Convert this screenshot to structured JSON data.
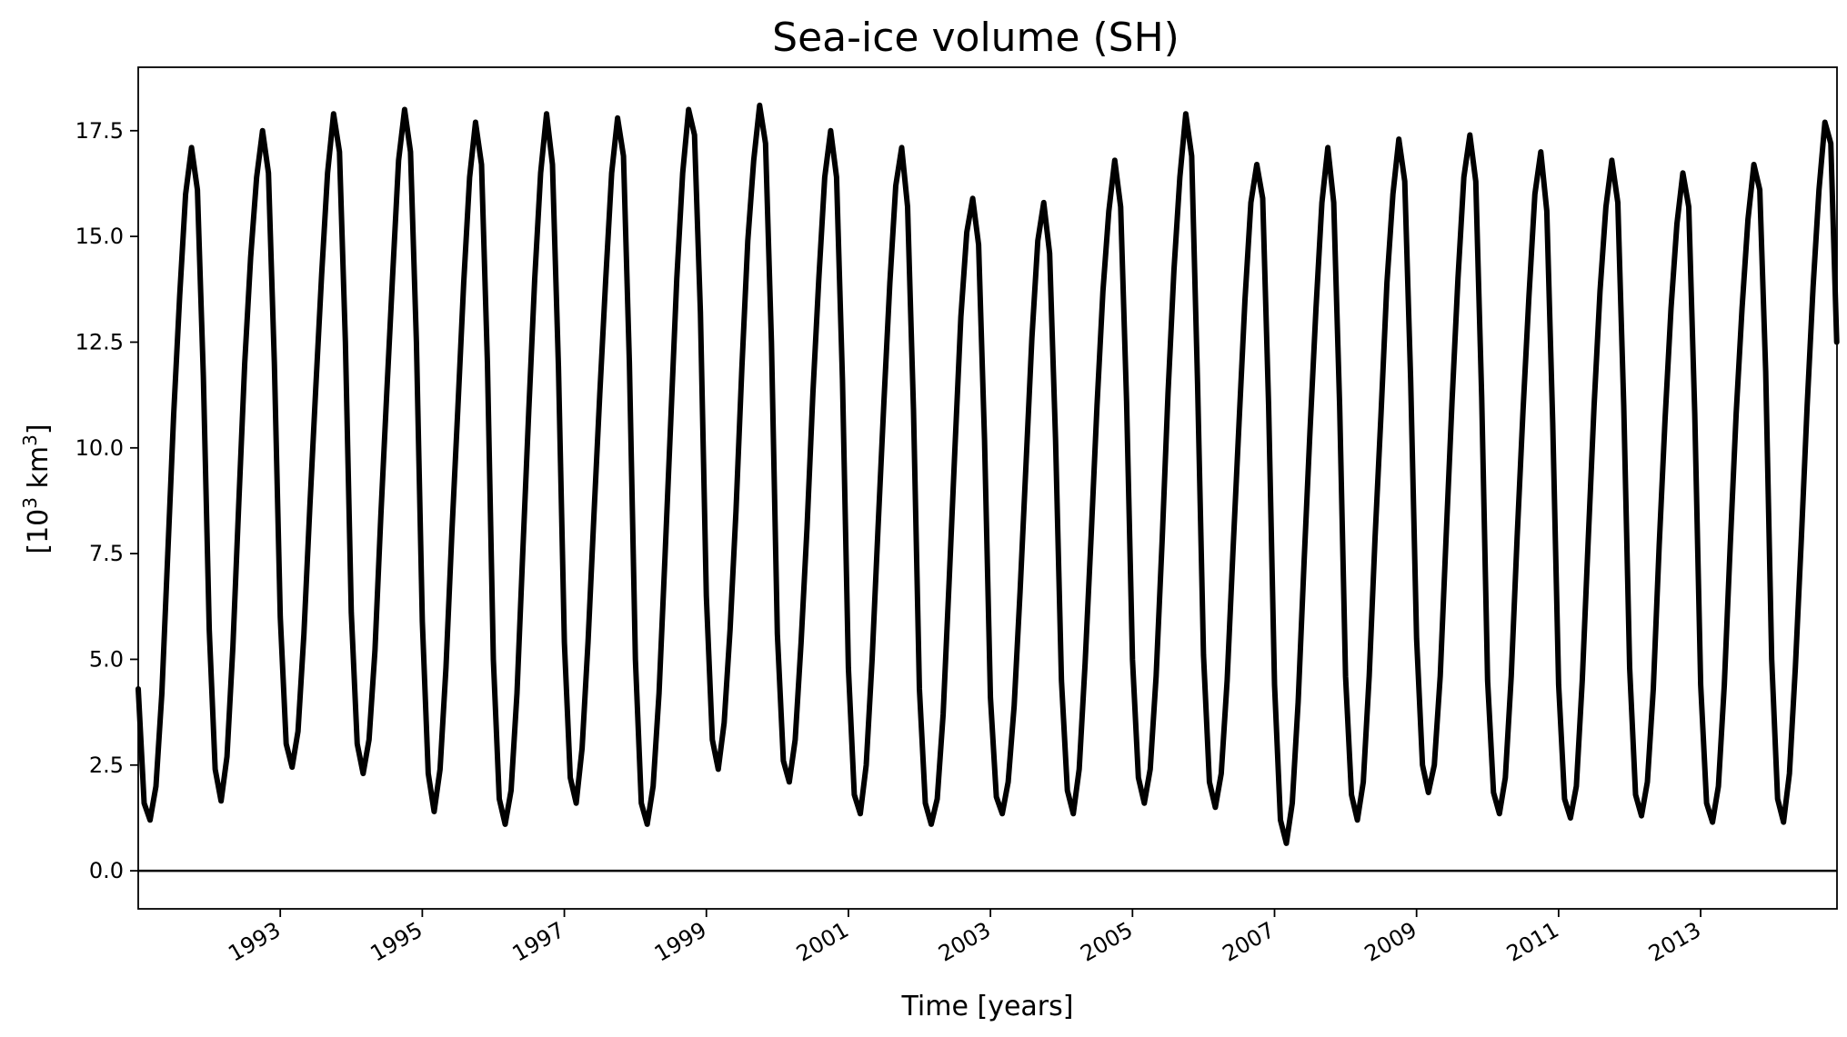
{
  "chart_data": {
    "type": "line",
    "title": "Sea-ice volume (SH)",
    "xlabel": "Time [years]",
    "ylabel_base": "[10",
    "ylabel_exp1": "3",
    "ylabel_unit": " km",
    "ylabel_exp2": "3",
    "ylabel_close": "]",
    "xlim": [
      1991.0,
      2014.92
    ],
    "ylim": [
      -0.9,
      19.0
    ],
    "x_ticks": [
      1993,
      1995,
      1997,
      1999,
      2001,
      2003,
      2005,
      2007,
      2009,
      2011,
      2013
    ],
    "x_tick_labels": [
      "1993",
      "1995",
      "1997",
      "1999",
      "2001",
      "2003",
      "2005",
      "2007",
      "2009",
      "2011",
      "2013"
    ],
    "y_ticks": [
      0.0,
      2.5,
      5.0,
      7.5,
      10.0,
      12.5,
      15.0,
      17.5
    ],
    "y_tick_labels": [
      "0.0",
      "2.5",
      "5.0",
      "7.5",
      "10.0",
      "12.5",
      "15.0",
      "17.5"
    ],
    "reference_line_y": 0.0,
    "line_color": "#000000",
    "grid": false,
    "series": [
      {
        "start_year": 1991,
        "values": [
          4.3,
          1.6,
          1.2,
          2.0,
          4.2,
          7.5,
          10.8,
          13.6,
          16.0,
          17.1,
          16.1,
          11.7,
          5.7,
          2.4,
          1.65,
          2.7,
          5.3,
          8.7,
          12.0,
          14.5,
          16.4,
          17.5,
          16.5,
          12.0,
          6.0,
          3.0,
          2.45,
          3.3,
          5.6,
          8.6,
          11.4,
          14.1,
          16.5,
          17.9,
          17.0,
          12.5,
          6.1,
          3.0,
          2.3,
          3.1,
          5.2,
          8.4,
          11.3,
          14.1,
          16.8,
          18.0,
          17.0,
          12.5,
          5.9,
          2.3,
          1.4,
          2.4,
          4.8,
          8.0,
          10.9,
          13.9,
          16.4,
          17.7,
          16.7,
          12.0,
          5.0,
          1.7,
          1.1,
          1.9,
          4.2,
          7.6,
          10.9,
          14.0,
          16.5,
          17.9,
          16.7,
          11.9,
          5.4,
          2.2,
          1.6,
          2.9,
          5.4,
          8.4,
          11.3,
          14.0,
          16.5,
          17.8,
          16.9,
          12.0,
          5.0,
          1.6,
          1.1,
          2.0,
          4.2,
          7.4,
          10.7,
          14.0,
          16.5,
          18.0,
          17.4,
          13.2,
          6.5,
          3.1,
          2.4,
          3.5,
          5.7,
          8.5,
          11.9,
          14.9,
          16.8,
          18.1,
          17.2,
          12.5,
          5.6,
          2.6,
          2.1,
          3.1,
          5.4,
          8.1,
          11.3,
          14.0,
          16.4,
          17.5,
          16.4,
          11.6,
          4.8,
          1.8,
          1.35,
          2.5,
          5.0,
          8.1,
          11.1,
          13.9,
          16.2,
          17.1,
          15.7,
          10.9,
          4.3,
          1.6,
          1.1,
          1.7,
          3.7,
          6.8,
          10.0,
          13.1,
          15.1,
          15.9,
          14.8,
          10.2,
          4.1,
          1.75,
          1.35,
          2.1,
          3.9,
          6.6,
          9.6,
          12.6,
          14.9,
          15.8,
          14.6,
          10.2,
          4.5,
          1.9,
          1.35,
          2.4,
          4.9,
          7.9,
          11.0,
          13.7,
          15.6,
          16.8,
          15.7,
          11.1,
          5.0,
          2.2,
          1.6,
          2.4,
          4.6,
          7.8,
          11.3,
          14.2,
          16.4,
          17.9,
          16.9,
          11.5,
          5.1,
          2.1,
          1.5,
          2.3,
          4.5,
          7.6,
          10.6,
          13.5,
          15.8,
          16.7,
          15.9,
          11.0,
          4.4,
          1.2,
          0.65,
          1.6,
          4.0,
          7.3,
          10.4,
          13.3,
          15.8,
          17.1,
          15.8,
          11.0,
          4.6,
          1.8,
          1.2,
          2.1,
          4.6,
          7.9,
          10.8,
          13.9,
          16.0,
          17.3,
          16.3,
          11.6,
          5.5,
          2.5,
          1.85,
          2.5,
          4.6,
          7.9,
          11.1,
          14.0,
          16.4,
          17.4,
          16.3,
          11.2,
          4.5,
          1.85,
          1.35,
          2.2,
          4.6,
          7.9,
          10.9,
          13.6,
          16.0,
          17.0,
          15.6,
          10.6,
          4.4,
          1.7,
          1.25,
          2.0,
          4.5,
          7.8,
          11.0,
          13.7,
          15.7,
          16.8,
          15.8,
          11.0,
          4.8,
          1.8,
          1.3,
          2.1,
          4.3,
          7.7,
          10.7,
          13.3,
          15.3,
          16.5,
          15.7,
          10.8,
          4.4,
          1.6,
          1.15,
          2.0,
          4.4,
          7.7,
          10.8,
          13.3,
          15.4,
          16.7,
          16.1,
          11.8,
          5.0,
          1.7,
          1.15,
          2.3,
          4.8,
          7.8,
          11.0,
          13.8,
          16.1,
          17.7,
          17.2,
          12.5
        ]
      }
    ]
  }
}
